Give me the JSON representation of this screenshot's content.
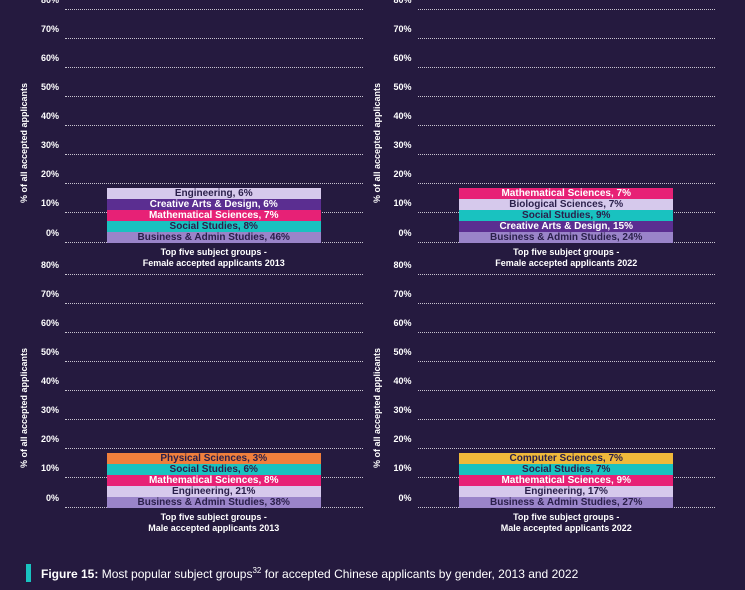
{
  "background": "#251a3f",
  "axis": {
    "ylabel": "% of all accepted applicants",
    "ylim": [
      0,
      80
    ],
    "ytick_step": 10,
    "tick_suffix": "%",
    "grid_color": "#c8c4d0",
    "tick_color": "#ffffff",
    "tick_fontsize": 9
  },
  "bar": {
    "left_pct": 14,
    "width_pct": 72
  },
  "label_colors": {
    "light_bg": "#2a1f4a",
    "dark_bg": "#ffffff"
  },
  "panels": [
    {
      "key": "f2013",
      "subtitle_l1": "Top five subject groups -",
      "subtitle_l2": "Female accepted applicants 2013",
      "segments": [
        {
          "name": "Business & Admin Studies",
          "value": 46,
          "fill": "#9a84c9",
          "text": "light"
        },
        {
          "name": "Social Studies",
          "value": 8,
          "fill": "#19c2c0",
          "text": "light"
        },
        {
          "name": "Mathematical Sciences",
          "value": 7,
          "fill": "#e72176",
          "text": "dark"
        },
        {
          "name": "Creative Arts & Design",
          "value": 6,
          "fill": "#5b2e91",
          "text": "dark"
        },
        {
          "name": "Engineering",
          "value": 6,
          "fill": "#d6c9ec",
          "text": "light"
        }
      ]
    },
    {
      "key": "f2022",
      "subtitle_l1": "Top five subject groups -",
      "subtitle_l2": "Female accepted applicants 2022",
      "segments": [
        {
          "name": "Business & Admin Studies",
          "value": 24,
          "fill": "#9a84c9",
          "text": "light"
        },
        {
          "name": "Creative Arts & Design",
          "value": 15,
          "fill": "#5b2e91",
          "text": "dark"
        },
        {
          "name": "Social Studies",
          "value": 9,
          "fill": "#19c2c0",
          "text": "light"
        },
        {
          "name": "Biological Sciences",
          "value": 7,
          "fill": "#d6c9ec",
          "text": "light"
        },
        {
          "name": "Mathematical Sciences",
          "value": 7,
          "fill": "#e72176",
          "text": "dark"
        }
      ]
    },
    {
      "key": "m2013",
      "subtitle_l1": "Top five subject groups -",
      "subtitle_l2": "Male accepted applicants 2013",
      "segments": [
        {
          "name": "Business & Admin Studies",
          "value": 38,
          "fill": "#9a84c9",
          "text": "light"
        },
        {
          "name": "Engineering",
          "value": 21,
          "fill": "#d6c9ec",
          "text": "light"
        },
        {
          "name": "Mathematical Sciences",
          "value": 8,
          "fill": "#e72176",
          "text": "dark"
        },
        {
          "name": "Social Studies",
          "value": 6,
          "fill": "#19c2c0",
          "text": "light"
        },
        {
          "name": "Physical Sciences",
          "value": 3,
          "fill": "#f07f3c",
          "text": "light"
        }
      ]
    },
    {
      "key": "m2022",
      "subtitle_l1": "Top five subject groups -",
      "subtitle_l2": "Male accepted applicants 2022",
      "segments": [
        {
          "name": "Business & Admin Studies",
          "value": 27,
          "fill": "#9a84c9",
          "text": "light"
        },
        {
          "name": "Engineering",
          "value": 17,
          "fill": "#d6c9ec",
          "text": "light"
        },
        {
          "name": "Mathematical Sciences",
          "value": 9,
          "fill": "#e72176",
          "text": "dark"
        },
        {
          "name": "Social Studies",
          "value": 7,
          "fill": "#19c2c0",
          "text": "light"
        },
        {
          "name": "Computer Sciences",
          "value": 7,
          "fill": "#f0b93a",
          "text": "light"
        }
      ]
    }
  ],
  "caption": {
    "fig_label": "Figure 15:",
    "text": "Most popular subject groups",
    "sup": "32",
    "text2": " for accepted Chinese applicants by gender, 2013 and 2022",
    "accent": "#19c2c0"
  }
}
